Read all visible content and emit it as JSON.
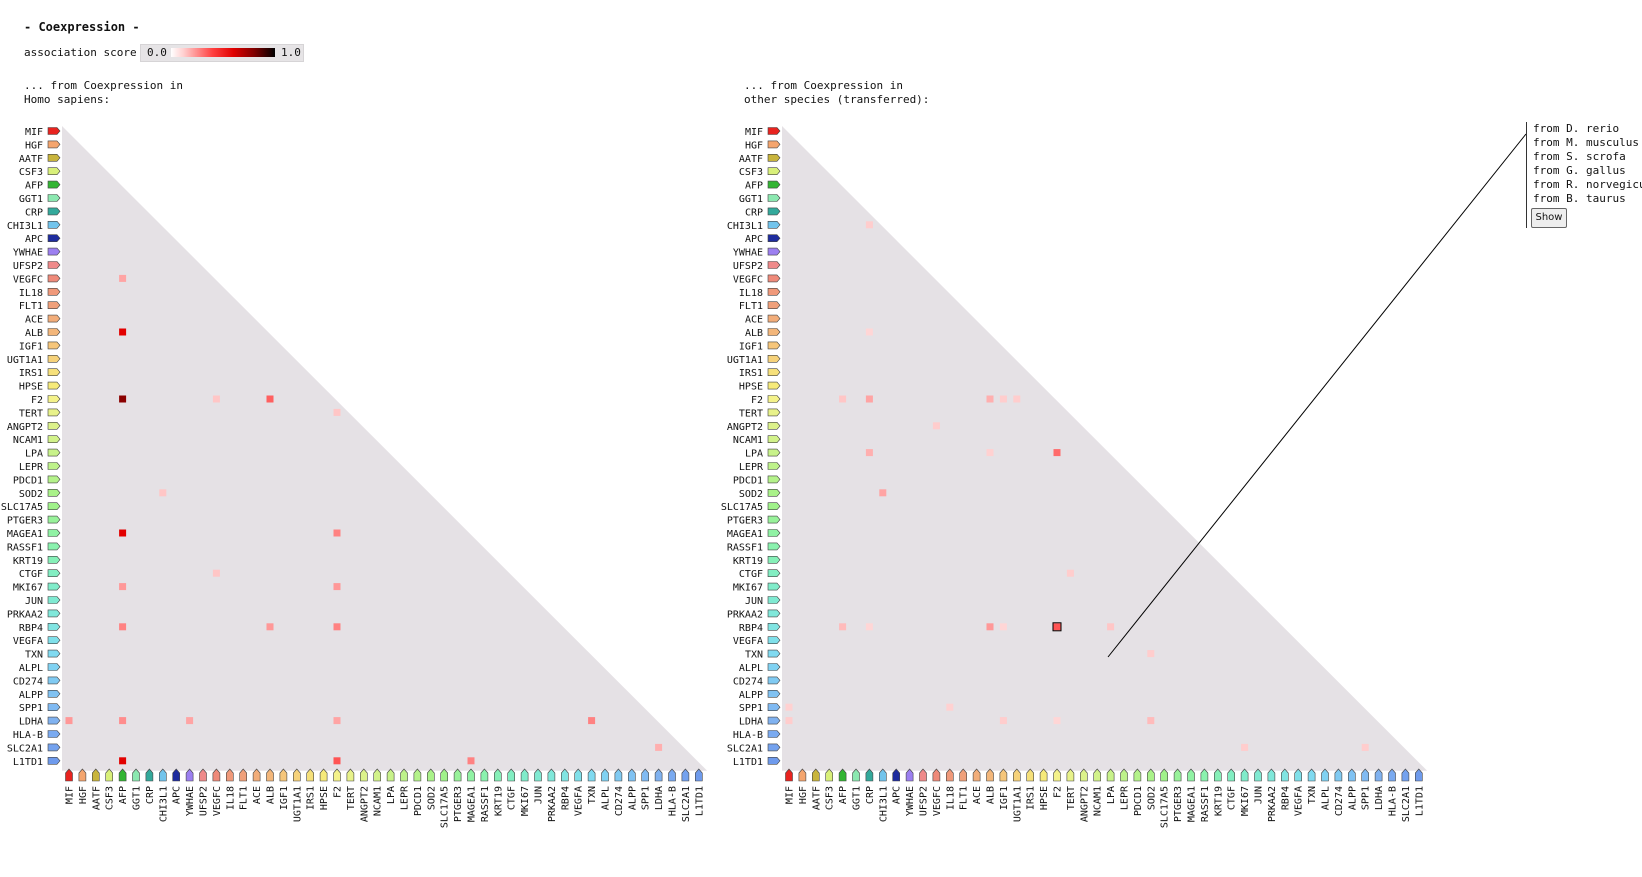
{
  "title": "- Coexpression -",
  "legend": {
    "label": "association score",
    "min": "0.0",
    "max": "1.0"
  },
  "left_panel": {
    "caption_line1": "... from Coexpression in",
    "caption_line2": "Homo sapiens:"
  },
  "right_panel": {
    "caption_line1": "... from Coexpression in",
    "caption_line2": "other species (transferred):"
  },
  "species": {
    "items": [
      "from D. rerio",
      "from M. musculus",
      "from S. scrofa",
      "from G. gallus",
      "from R. norvegicus",
      "from B. taurus"
    ],
    "show_label": "Show"
  },
  "genes": [
    {
      "name": "MIF",
      "color": "#e8231f"
    },
    {
      "name": "HGF",
      "color": "#f4a56e"
    },
    {
      "name": "AATF",
      "color": "#c8b43c"
    },
    {
      "name": "CSF3",
      "color": "#d9f07a"
    },
    {
      "name": "AFP",
      "color": "#33b533"
    },
    {
      "name": "GGT1",
      "color": "#8be8b0"
    },
    {
      "name": "CRP",
      "color": "#33a99b"
    },
    {
      "name": "CHI3L1",
      "color": "#72c4ec"
    },
    {
      "name": "APC",
      "color": "#1f2d9e"
    },
    {
      "name": "YWHAE",
      "color": "#9c7ff0"
    },
    {
      "name": "UFSP2",
      "color": "#ef8a8a"
    },
    {
      "name": "VEGFC",
      "color": "#ef8a7a"
    },
    {
      "name": "IL18",
      "color": "#f0997a"
    },
    {
      "name": "FLT1",
      "color": "#f0a07a"
    },
    {
      "name": "ACE",
      "color": "#f2ad7a"
    },
    {
      "name": "ALB",
      "color": "#f3b67a"
    },
    {
      "name": "IGF1",
      "color": "#f6c67a"
    },
    {
      "name": "UGT1A1",
      "color": "#f6d27a"
    },
    {
      "name": "IRS1",
      "color": "#f6e07a"
    },
    {
      "name": "HPSE",
      "color": "#f6ea7a"
    },
    {
      "name": "F2",
      "color": "#f4f28a"
    },
    {
      "name": "TERT",
      "color": "#e8f28a"
    },
    {
      "name": "ANGPT2",
      "color": "#dcf28a"
    },
    {
      "name": "NCAM1",
      "color": "#d2f28a"
    },
    {
      "name": "LPA",
      "color": "#c8f28a"
    },
    {
      "name": "LEPR",
      "color": "#bef28a"
    },
    {
      "name": "PDCD1",
      "color": "#b4f28a"
    },
    {
      "name": "SOD2",
      "color": "#aaf28a"
    },
    {
      "name": "SLC17A5",
      "color": "#a0f28a"
    },
    {
      "name": "PTGER3",
      "color": "#98f29a"
    },
    {
      "name": "MAGEA1",
      "color": "#90f2a4"
    },
    {
      "name": "RASSF1",
      "color": "#8af2ae"
    },
    {
      "name": "KRT19",
      "color": "#86f0b8"
    },
    {
      "name": "CTGF",
      "color": "#82eec2"
    },
    {
      "name": "MKI67",
      "color": "#80ecca"
    },
    {
      "name": "JUN",
      "color": "#80ead2"
    },
    {
      "name": "PRKAA2",
      "color": "#80e8da"
    },
    {
      "name": "RBP4",
      "color": "#80e4e2"
    },
    {
      "name": "VEGFA",
      "color": "#80e0ea"
    },
    {
      "name": "TXN",
      "color": "#80daf0"
    },
    {
      "name": "ALPL",
      "color": "#80d2f2"
    },
    {
      "name": "CD274",
      "color": "#80caf2"
    },
    {
      "name": "ALPP",
      "color": "#80c2f2"
    },
    {
      "name": "SPP1",
      "color": "#80baf2"
    },
    {
      "name": "LDHA",
      "color": "#80b2f0"
    },
    {
      "name": "HLA-B",
      "color": "#7aaaf0"
    },
    {
      "name": "SLC2A1",
      "color": "#74a2ee"
    },
    {
      "name": "L1TD1",
      "color": "#6e9aec"
    }
  ],
  "chart_data": [
    {
      "type": "heatmap",
      "title": "... from Coexpression in Homo sapiens:",
      "color_scale": {
        "min": 0.0,
        "max": 1.0
      },
      "cells": [
        {
          "row": "VEGFC",
          "col": "AFP",
          "value": 0.3
        },
        {
          "row": "ALB",
          "col": "AFP",
          "value": 0.9
        },
        {
          "row": "F2",
          "col": "AFP",
          "value": 1.0
        },
        {
          "row": "F2",
          "col": "VEGFC",
          "value": 0.15
        },
        {
          "row": "F2",
          "col": "ALB",
          "value": 0.6
        },
        {
          "row": "TERT",
          "col": "F2",
          "value": 0.15
        },
        {
          "row": "SOD2",
          "col": "CHI3L1",
          "value": 0.15
        },
        {
          "row": "MAGEA1",
          "col": "AFP",
          "value": 0.9
        },
        {
          "row": "MAGEA1",
          "col": "F2",
          "value": 0.45
        },
        {
          "row": "CTGF",
          "col": "VEGFC",
          "value": 0.15
        },
        {
          "row": "MKI67",
          "col": "AFP",
          "value": 0.35
        },
        {
          "row": "MKI67",
          "col": "F2",
          "value": 0.35
        },
        {
          "row": "RBP4",
          "col": "AFP",
          "value": 0.45
        },
        {
          "row": "RBP4",
          "col": "ALB",
          "value": 0.35
        },
        {
          "row": "RBP4",
          "col": "F2",
          "value": 0.45
        },
        {
          "row": "LDHA",
          "col": "MIF",
          "value": 0.35
        },
        {
          "row": "LDHA",
          "col": "AFP",
          "value": 0.4
        },
        {
          "row": "LDHA",
          "col": "YWHAE",
          "value": 0.3
        },
        {
          "row": "LDHA",
          "col": "F2",
          "value": 0.3
        },
        {
          "row": "LDHA",
          "col": "TXN",
          "value": 0.45
        },
        {
          "row": "SLC2A1",
          "col": "LDHA",
          "value": 0.25
        },
        {
          "row": "L1TD1",
          "col": "AFP",
          "value": 0.9
        },
        {
          "row": "L1TD1",
          "col": "F2",
          "value": 0.65
        },
        {
          "row": "L1TD1",
          "col": "MAGEA1",
          "value": 0.45
        }
      ]
    },
    {
      "type": "heatmap",
      "title": "... from Coexpression in other species (transferred):",
      "color_scale": {
        "min": 0.0,
        "max": 1.0
      },
      "cells": [
        {
          "row": "CHI3L1",
          "col": "CRP",
          "value": 0.12
        },
        {
          "row": "ALB",
          "col": "CRP",
          "value": 0.08
        },
        {
          "row": "F2",
          "col": "AFP",
          "value": 0.15
        },
        {
          "row": "F2",
          "col": "CRP",
          "value": 0.3
        },
        {
          "row": "F2",
          "col": "ALB",
          "value": 0.25
        },
        {
          "row": "F2",
          "col": "IGF1",
          "value": 0.12
        },
        {
          "row": "F2",
          "col": "UGT1A1",
          "value": 0.12
        },
        {
          "row": "ANGPT2",
          "col": "VEGFC",
          "value": 0.12
        },
        {
          "row": "LPA",
          "col": "CRP",
          "value": 0.25
        },
        {
          "row": "LPA",
          "col": "ALB",
          "value": 0.1
        },
        {
          "row": "LPA",
          "col": "F2",
          "value": 0.55
        },
        {
          "row": "SOD2",
          "col": "CHI3L1",
          "value": 0.3
        },
        {
          "row": "CTGF",
          "col": "TERT",
          "value": 0.12
        },
        {
          "row": "RBP4",
          "col": "AFP",
          "value": 0.2
        },
        {
          "row": "RBP4",
          "col": "CRP",
          "value": 0.08
        },
        {
          "row": "RBP4",
          "col": "ALB",
          "value": 0.35
        },
        {
          "row": "RBP4",
          "col": "IGF1",
          "value": 0.08
        },
        {
          "row": "RBP4",
          "col": "F2",
          "value": 0.65
        },
        {
          "row": "RBP4",
          "col": "LPA",
          "value": 0.15
        },
        {
          "row": "TXN",
          "col": "SOD2",
          "value": 0.12
        },
        {
          "row": "SPP1",
          "col": "MIF",
          "value": 0.1
        },
        {
          "row": "SPP1",
          "col": "IL18",
          "value": 0.1
        },
        {
          "row": "LDHA",
          "col": "MIF",
          "value": 0.12
        },
        {
          "row": "LDHA",
          "col": "IGF1",
          "value": 0.12
        },
        {
          "row": "LDHA",
          "col": "F2",
          "value": 0.08
        },
        {
          "row": "LDHA",
          "col": "SOD2",
          "value": 0.2
        },
        {
          "row": "SLC2A1",
          "col": "MKI67",
          "value": 0.12
        },
        {
          "row": "SLC2A1",
          "col": "SPP1",
          "value": 0.12
        }
      ]
    }
  ]
}
